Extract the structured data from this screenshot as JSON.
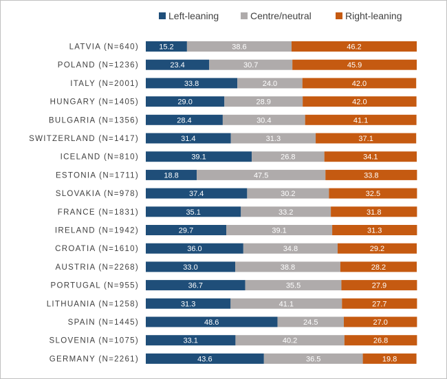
{
  "chart_data": {
    "type": "bar",
    "orientation": "horizontal",
    "stacked": true,
    "percent_stacked": true,
    "title": "",
    "xlabel": "",
    "ylabel": "",
    "xlim": [
      0,
      100
    ],
    "grid": false,
    "legend_position": "top",
    "categories": [
      "LATVIA (N=640)",
      "POLAND (N=1236)",
      "ITALY (N=2001)",
      "HUNGARY (N=1405)",
      "BULGARIA (N=1356)",
      "SWITZERLAND (N=1417)",
      "ICELAND (N=810)",
      "ESTONIA (N=1711)",
      "SLOVAKIA (N=978)",
      "FRANCE (N=1831)",
      "IRELAND (N=1942)",
      "CROATIA (N=1610)",
      "AUSTRIA (N=2268)",
      "PORTUGAL (N=955)",
      "LITHUANIA (N=1258)",
      "SPAIN (N=1445)",
      "SLOVENIA (N=1075)",
      "GERMANY (N=2261)"
    ],
    "series": [
      {
        "name": "Left-leaning",
        "color": "#1f4e79",
        "values": [
          15.2,
          23.4,
          33.8,
          29.0,
          28.4,
          31.4,
          39.1,
          18.8,
          37.4,
          35.1,
          29.7,
          36.0,
          33.0,
          36.7,
          31.3,
          48.6,
          33.1,
          43.6
        ]
      },
      {
        "name": "Centre/neutral",
        "color": "#afabab",
        "values": [
          38.6,
          30.7,
          24.0,
          28.9,
          30.4,
          31.3,
          26.8,
          47.5,
          30.2,
          33.2,
          39.1,
          34.8,
          38.8,
          35.5,
          41.1,
          24.5,
          40.2,
          36.5
        ]
      },
      {
        "name": "Right-leaning",
        "color": "#c55a11",
        "values": [
          46.2,
          45.9,
          42.0,
          42.0,
          41.1,
          37.1,
          34.1,
          33.8,
          32.5,
          31.8,
          31.3,
          29.2,
          28.2,
          27.9,
          27.7,
          27.0,
          26.8,
          19.8
        ]
      }
    ]
  }
}
